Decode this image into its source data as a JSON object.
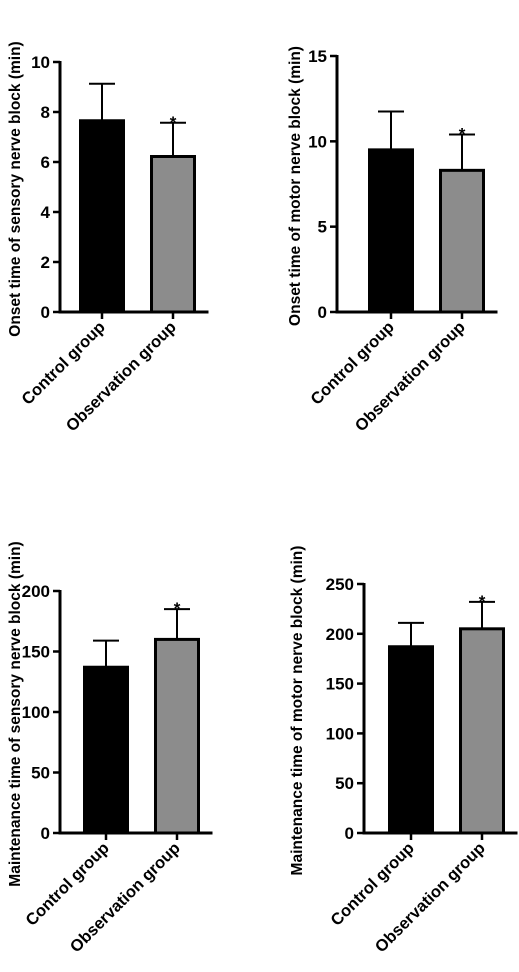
{
  "chart_data": [
    {
      "type": "bar",
      "ylabel": "Onset time of sensory nerve block (min)",
      "categories": [
        "Control group",
        "Observation group"
      ],
      "values": [
        7.65,
        6.22
      ],
      "errors": [
        1.48,
        1.35
      ],
      "significance": [
        "",
        "*"
      ],
      "ylim": [
        0,
        10
      ],
      "yticks": [
        0,
        2,
        4,
        6,
        8,
        10
      ],
      "colors": [
        "#000000",
        "#8c8c8c"
      ],
      "grid": false
    },
    {
      "type": "bar",
      "ylabel": "Onset time of motor nerve block (min)",
      "categories": [
        "Control group",
        "Observation group"
      ],
      "values": [
        9.5,
        8.3
      ],
      "errors": [
        2.25,
        2.1
      ],
      "significance": [
        "",
        "*"
      ],
      "ylim": [
        0,
        15
      ],
      "yticks": [
        0,
        5,
        10,
        15
      ],
      "colors": [
        "#000000",
        "#8c8c8c"
      ],
      "grid": false
    },
    {
      "type": "bar",
      "ylabel": "Maintenance time of sensory nerve block (min)",
      "categories": [
        "Control group",
        "Observation group"
      ],
      "values": [
        137,
        160
      ],
      "errors": [
        22,
        25
      ],
      "significance": [
        "",
        "*"
      ],
      "ylim": [
        0,
        200
      ],
      "yticks": [
        0,
        50,
        100,
        150,
        200
      ],
      "colors": [
        "#000000",
        "#8c8c8c"
      ],
      "grid": false
    },
    {
      "type": "bar",
      "ylabel": "Maintenance time of motor nerve block (min)",
      "categories": [
        "Control group",
        "Observation group"
      ],
      "values": [
        187,
        205
      ],
      "errors": [
        24,
        27
      ],
      "significance": [
        "",
        "*"
      ],
      "ylim": [
        0,
        250
      ],
      "yticks": [
        0,
        50,
        100,
        150,
        200,
        250
      ],
      "colors": [
        "#000000",
        "#8c8c8c"
      ],
      "grid": false
    }
  ]
}
